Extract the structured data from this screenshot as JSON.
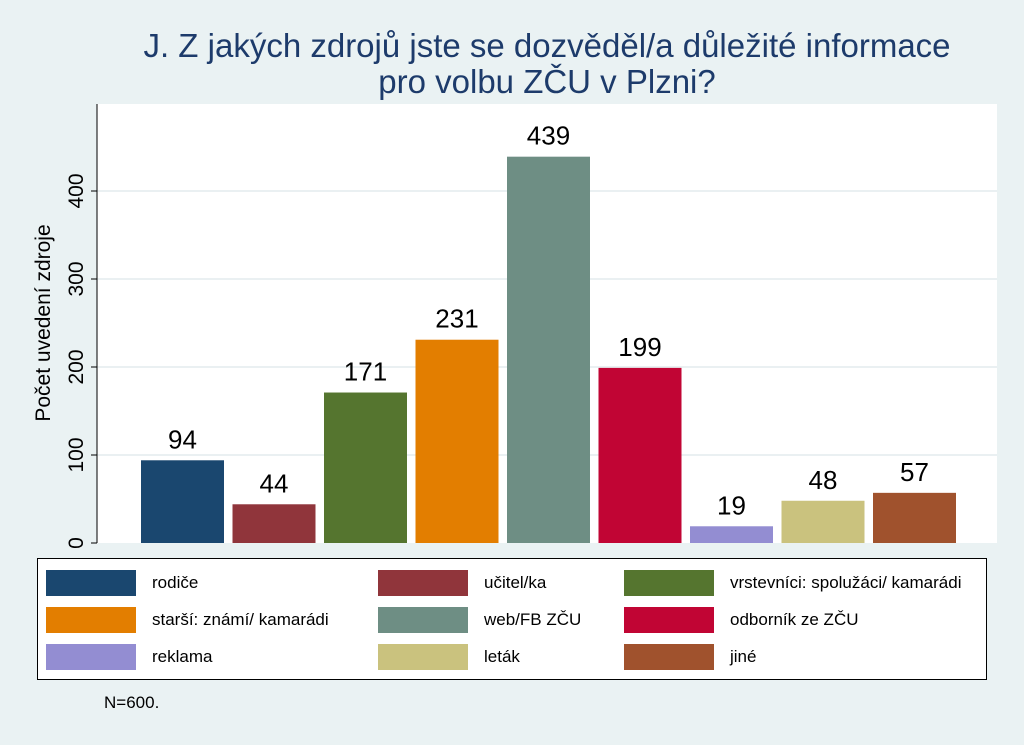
{
  "title_line1": "J. Z jakých zdrojů jste se dozvěděl/a důležité informace",
  "title_line2": "pro volbu ZČU v Plzni?",
  "note": "N=600.",
  "chart_data": {
    "type": "bar",
    "ylabel": "Počet uvedení zdroje",
    "ylim": [
      0,
      450
    ],
    "yticks": [
      0,
      100,
      200,
      300,
      400
    ],
    "grid": true,
    "legend_position": "bottom",
    "series": [
      {
        "name": "rodiče",
        "value": 94,
        "color": "#1a476f"
      },
      {
        "name": "učitel/ka",
        "value": 44,
        "color": "#90353b"
      },
      {
        "name": "vrstevníci: spolužáci/ kamarádi",
        "value": 171,
        "color": "#55752f"
      },
      {
        "name": "starší: známí/ kamarádi",
        "value": 231,
        "color": "#e37e00"
      },
      {
        "name": "web/FB ZČU",
        "value": 439,
        "color": "#6e8e84"
      },
      {
        "name": "odborník ze ZČU",
        "value": 199,
        "color": "#c10534"
      },
      {
        "name": "reklama",
        "value": 19,
        "color": "#938dd2"
      },
      {
        "name": "leták",
        "value": 48,
        "color": "#cac27e"
      },
      {
        "name": "jiné",
        "value": 57,
        "color": "#a0522d"
      }
    ]
  }
}
